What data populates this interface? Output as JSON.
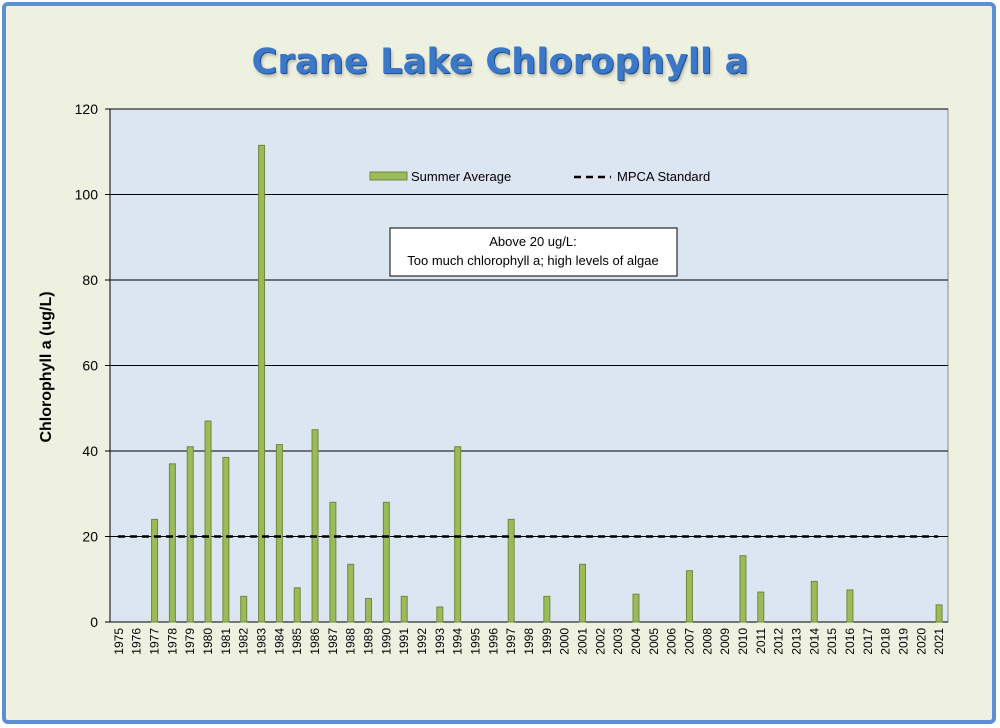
{
  "chart_data": {
    "type": "bar",
    "title": "Crane Lake Chlorophyll a",
    "ylabel": "Chlorophyll a (ug/L)",
    "xlabel": "",
    "ylim": [
      0,
      120
    ],
    "yticks": [
      0,
      20,
      40,
      60,
      80,
      100,
      120
    ],
    "grid": true,
    "legend_position": "top-center",
    "categories": [
      "1975",
      "1976",
      "1977",
      "1978",
      "1979",
      "1980",
      "1981",
      "1982",
      "1983",
      "1984",
      "1985",
      "1986",
      "1987",
      "1988",
      "1989",
      "1990",
      "1991",
      "1992",
      "1993",
      "1994",
      "1995",
      "1996",
      "1997",
      "1998",
      "1999",
      "2000",
      "2001",
      "2002",
      "2003",
      "2004",
      "2005",
      "2006",
      "2007",
      "2008",
      "2009",
      "2010",
      "2011",
      "2012",
      "2013",
      "2014",
      "2015",
      "2016",
      "2017",
      "2018",
      "2019",
      "2020",
      "2021"
    ],
    "series": [
      {
        "name": "Summer Average",
        "color": "#9bbb59",
        "values": [
          null,
          null,
          24,
          37,
          41,
          47,
          38.5,
          6,
          111.5,
          41.5,
          8,
          45,
          28,
          13.5,
          5.5,
          28,
          6,
          null,
          3.5,
          41,
          null,
          null,
          24,
          null,
          6,
          null,
          13.5,
          null,
          null,
          6.5,
          null,
          null,
          12,
          null,
          null,
          15.5,
          7,
          null,
          null,
          9.5,
          null,
          7.5,
          null,
          null,
          null,
          null,
          4
        ]
      }
    ],
    "reference_lines": [
      {
        "name": "MPCA Standard",
        "value": 20,
        "style": "dashed",
        "color": "#000000"
      }
    ],
    "annotation": {
      "line1": "Above 20 ug/L:",
      "line2": "Too much chlorophyll a; high levels of algae"
    }
  }
}
